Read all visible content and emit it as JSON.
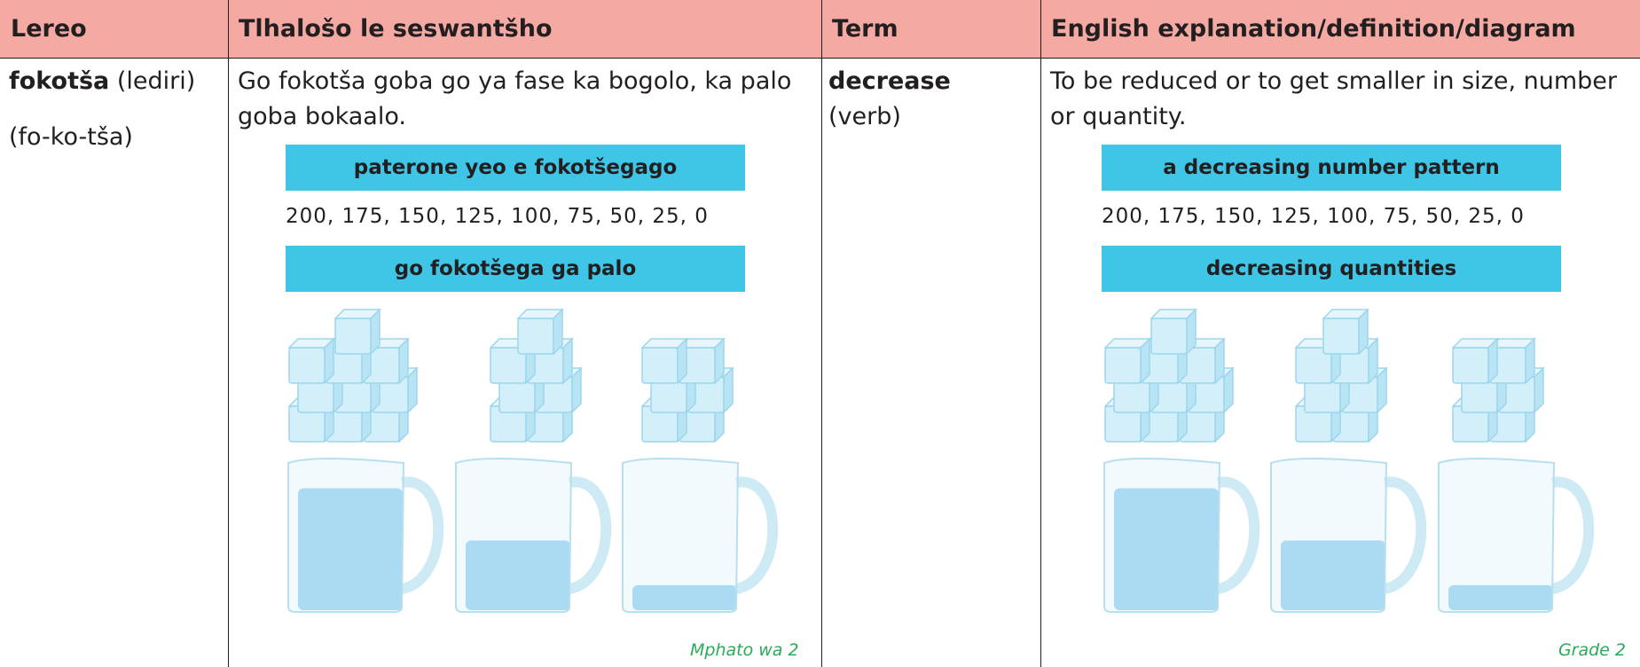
{
  "header": {
    "cells": [
      "Lereo",
      "Tlhalošo le seswantšho",
      "Term",
      "English explanation/definition/diagram"
    ]
  },
  "row": {
    "lereo": {
      "word": "fokotša",
      "part_of_speech": "(lediri)",
      "syllables": "(fo-ko-tša)"
    },
    "tlhalosho": {
      "text": "Go fokotša goba go ya fase ka bogolo, ka palo goba bokaalo.",
      "pattern_title": "paterone yeo e fokotšegago",
      "sequence": "200, 175, 150, 125, 100, 75, 50, 25, 0",
      "quantities_title": "go fokotšega ga palo"
    },
    "term": {
      "word": "decrease",
      "part_of_speech": "(verb)"
    },
    "explanation": {
      "text": "To be reduced or to get smaller in size, number or quantity.",
      "pattern_title": "a decreasing number pattern",
      "sequence": "200, 175, 150, 125, 100, 75, 50, 25, 0",
      "quantities_title": "decreasing quantities"
    }
  },
  "footer": {
    "left": "Mphato wa 2",
    "right": "Grade 2"
  }
}
